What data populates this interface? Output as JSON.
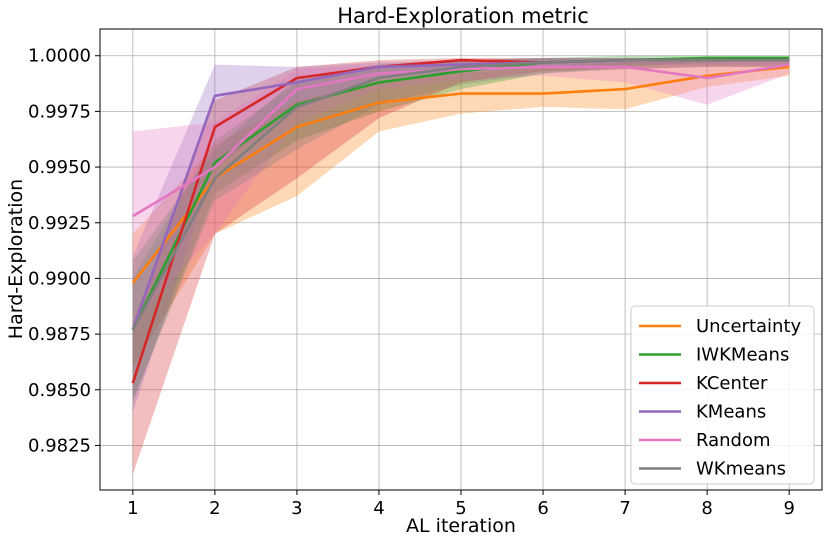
{
  "chart_data": {
    "type": "line",
    "title": "Hard-Exploration metric",
    "xlabel": "AL iteration",
    "ylabel": "Hard-Exploration",
    "x": [
      1,
      2,
      3,
      4,
      5,
      6,
      7,
      8,
      9
    ],
    "xlim": [
      0.6,
      9.4
    ],
    "ylim": [
      0.9805,
      1.0012
    ],
    "xticks": [
      "1",
      "2",
      "3",
      "4",
      "5",
      "6",
      "7",
      "8",
      "9"
    ],
    "yticks": [
      "0.9825",
      "0.9850",
      "0.9875",
      "0.9900",
      "0.9925",
      "0.9950",
      "0.9975",
      "1.0000"
    ],
    "grid": true,
    "legend_position": "lower-right",
    "series": [
      {
        "name": "Uncertainty",
        "color": "#ff7f0e",
        "values": [
          0.9898,
          0.9945,
          0.9968,
          0.9979,
          0.9983,
          0.9983,
          0.9985,
          0.9991,
          0.9995
        ],
        "lower": [
          0.986,
          0.992,
          0.9937,
          0.9966,
          0.9974,
          0.9977,
          0.9976,
          0.9986,
          0.9991
        ],
        "upper": [
          0.992,
          0.996,
          0.998,
          0.9988,
          0.9992,
          0.9995,
          0.9997,
          0.9998,
          0.9999
        ]
      },
      {
        "name": "IWKMeans",
        "color": "#2ca02c",
        "values": [
          0.9877,
          0.9952,
          0.9978,
          0.9988,
          0.9993,
          0.9997,
          0.9998,
          0.9999,
          0.9999
        ],
        "lower": [
          0.9845,
          0.9938,
          0.9962,
          0.9975,
          0.9985,
          0.9992,
          0.9995,
          0.9997,
          0.9998
        ],
        "upper": [
          0.99,
          0.9962,
          0.9988,
          0.9995,
          0.9998,
          0.9999,
          1.0,
          1.0,
          1.0
        ]
      },
      {
        "name": "KCenter",
        "color": "#d62728",
        "values": [
          0.9853,
          0.9968,
          0.999,
          0.9995,
          0.9998,
          0.9997,
          0.9998,
          0.9998,
          0.9998
        ],
        "lower": [
          0.9812,
          0.992,
          0.9945,
          0.9972,
          0.9988,
          0.9993,
          0.9994,
          0.9995,
          0.9995
        ],
        "upper": [
          0.988,
          0.998,
          0.9995,
          0.9998,
          0.9999,
          0.9999,
          0.9999,
          0.9999,
          0.9999
        ]
      },
      {
        "name": "KMeans",
        "color": "#9467bd",
        "values": [
          0.9877,
          0.9982,
          0.9988,
          0.9995,
          0.9996,
          0.9997,
          0.9998,
          0.9998,
          0.9998
        ],
        "lower": [
          0.984,
          0.995,
          0.9976,
          0.999,
          0.9993,
          0.9995,
          0.9996,
          0.9996,
          0.9996
        ],
        "upper": [
          0.991,
          0.9996,
          0.9995,
          0.9997,
          0.9998,
          0.9999,
          0.9999,
          0.9999,
          0.9999
        ]
      },
      {
        "name": "Random",
        "color": "#e377c2",
        "values": [
          0.9928,
          0.995,
          0.9985,
          0.9992,
          0.9994,
          0.9995,
          0.9995,
          0.999,
          0.9996
        ],
        "lower": [
          0.988,
          0.992,
          0.997,
          0.9985,
          0.9989,
          0.9991,
          0.9988,
          0.9978,
          0.9992
        ],
        "upper": [
          0.9966,
          0.997,
          0.9994,
          0.9996,
          0.9997,
          0.9998,
          0.9998,
          0.9997,
          0.9998
        ]
      },
      {
        "name": "WKmeans",
        "color": "#7f7f7f",
        "values": [
          0.9877,
          0.9945,
          0.9977,
          0.999,
          0.9995,
          0.9997,
          0.9998,
          0.9998,
          0.9998
        ],
        "lower": [
          0.9845,
          0.9935,
          0.9958,
          0.9978,
          0.9987,
          0.9992,
          0.9994,
          0.9995,
          0.9995
        ],
        "upper": [
          0.9908,
          0.9958,
          0.999,
          0.9996,
          0.9998,
          0.9999,
          0.9999,
          0.9999,
          0.9999
        ]
      }
    ]
  }
}
